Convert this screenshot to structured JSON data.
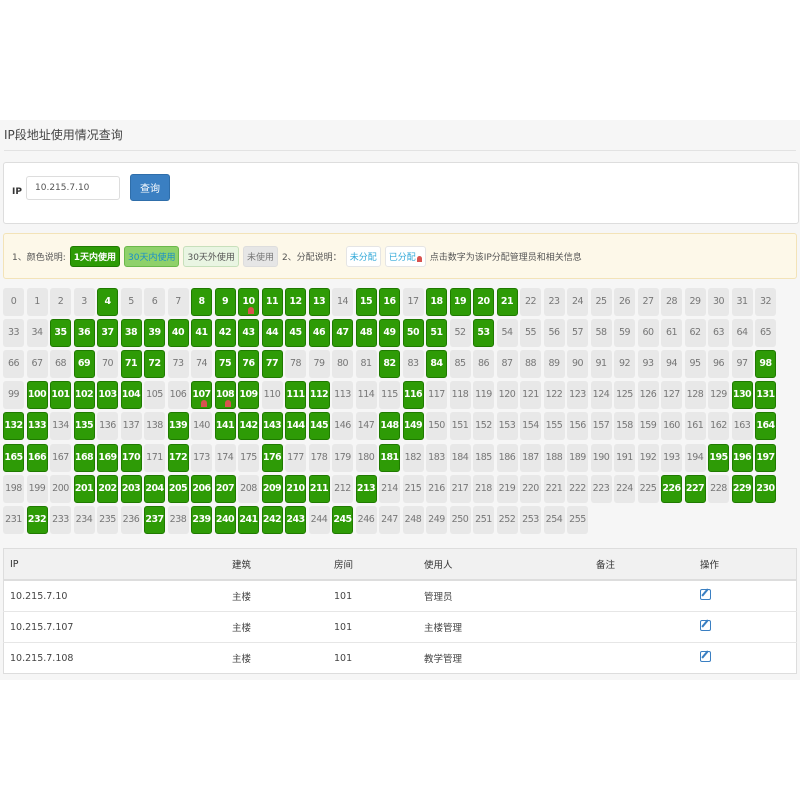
{
  "title": "IP段地址使用情况查询",
  "search": {
    "label": "IP",
    "value": "10.215.7.10",
    "button": "查询"
  },
  "legend": {
    "color_label": "1、颜色说明:",
    "used_1day": "1天内使用",
    "used_30days": "30天内使用",
    "used_over_30days": "30天外使用",
    "unused": "未使用",
    "alloc_label": "2、分配说明：",
    "unallocated": "未分配",
    "allocated": "已分配",
    "hint": "点击数字为该IP分配管理员和相关信息"
  },
  "grid": {
    "total": 256,
    "green": [
      4,
      8,
      9,
      10,
      11,
      12,
      13,
      15,
      16,
      18,
      19,
      20,
      21,
      35,
      36,
      37,
      38,
      39,
      40,
      41,
      42,
      43,
      44,
      45,
      46,
      47,
      48,
      49,
      50,
      51,
      53,
      69,
      71,
      72,
      75,
      76,
      77,
      82,
      84,
      98,
      100,
      101,
      102,
      103,
      104,
      107,
      108,
      109,
      111,
      112,
      116,
      130,
      131,
      132,
      133,
      135,
      139,
      141,
      142,
      143,
      144,
      145,
      148,
      149,
      164,
      165,
      166,
      168,
      169,
      170,
      172,
      176,
      181,
      195,
      196,
      197,
      201,
      202,
      203,
      204,
      205,
      206,
      207,
      209,
      210,
      211,
      213,
      226,
      227,
      229,
      230,
      232,
      237,
      239,
      240,
      241,
      242,
      243,
      245
    ],
    "allocated": [
      10,
      107,
      108
    ],
    "colors": {
      "used_1day": "#2e9b06",
      "unused": "#e8e8e8",
      "allocated_marker": "#d9534f"
    }
  },
  "table": {
    "headers": [
      "IP",
      "建筑",
      "房间",
      "使用人",
      "备注",
      "操作"
    ],
    "rows": [
      {
        "ip": "10.215.7.10",
        "building": "主楼",
        "room": "101",
        "user": "管理员",
        "note": ""
      },
      {
        "ip": "10.215.7.107",
        "building": "主楼",
        "room": "101",
        "user": "主楼管理",
        "note": ""
      },
      {
        "ip": "10.215.7.108",
        "building": "主楼",
        "room": "101",
        "user": "教学管理",
        "note": ""
      }
    ]
  }
}
